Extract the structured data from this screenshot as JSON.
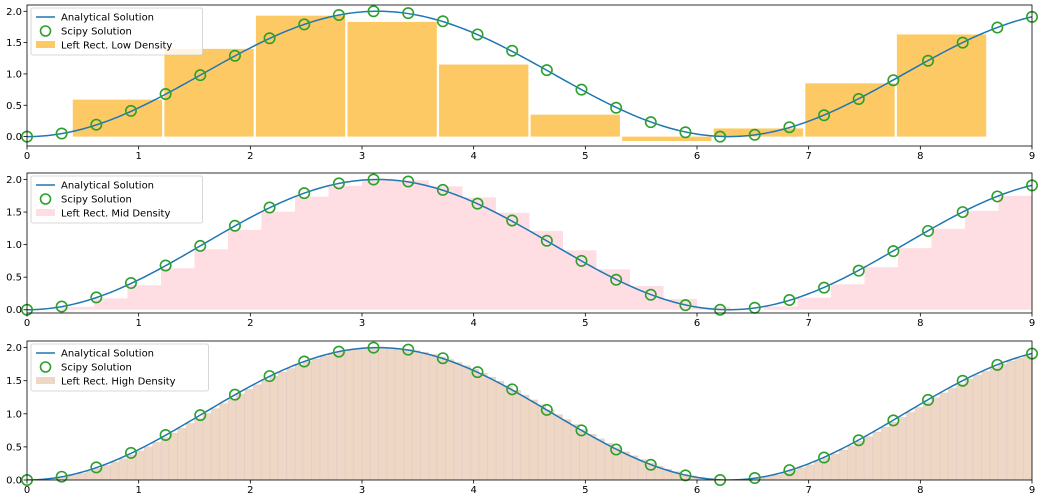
{
  "chart_data": [
    {
      "type": "line",
      "x_range": [
        0,
        9
      ],
      "y_range": [
        -0.15,
        2.1
      ],
      "x_ticks": [
        "0",
        "1",
        "2",
        "3",
        "4",
        "5",
        "6",
        "7",
        "8",
        "9"
      ],
      "y_ticks": [
        "0.0",
        "0.5",
        "1.0",
        "1.5",
        "2.0"
      ],
      "grid": false,
      "legend_position": "upper-left",
      "series": [
        {
          "name": "Analytical Solution",
          "kind": "line",
          "color": "#1f77b4",
          "function": "1 - cos(x)"
        },
        {
          "name": "Scipy Solution",
          "kind": "markers",
          "color": "#2ca02c",
          "x": [
            0,
            0.3103,
            0.6207,
            0.931,
            1.2414,
            1.5517,
            1.8621,
            2.1724,
            2.4828,
            2.7931,
            3.1034,
            3.4138,
            3.7241,
            4.0345,
            4.3448,
            4.6552,
            4.9655,
            5.2759,
            5.5862,
            5.8966,
            6.2069,
            6.5172,
            6.8276,
            7.1379,
            7.4483,
            7.7586,
            8.069,
            8.3793,
            8.6897,
            9.0
          ],
          "y": [
            0.0,
            0.05,
            0.19,
            0.41,
            0.68,
            0.98,
            1.29,
            1.57,
            1.79,
            1.94,
            2.0,
            1.97,
            1.84,
            1.63,
            1.37,
            1.06,
            0.75,
            0.46,
            0.23,
            0.07,
            0.0,
            0.03,
            0.15,
            0.34,
            0.6,
            0.9,
            1.21,
            1.5,
            1.74,
            1.91
          ]
        },
        {
          "name": "Left Rect. Low Density",
          "kind": "rectangles",
          "color": "#fdc964",
          "x_left": [
            0.41,
            1.23,
            2.05,
            2.87,
            3.69,
            4.51,
            5.33,
            6.15,
            6.97,
            7.79
          ],
          "width": 0.8,
          "heights": [
            0.59,
            1.4,
            1.93,
            1.83,
            1.15,
            0.35,
            -0.07,
            0.13,
            0.85,
            1.63
          ]
        }
      ]
    },
    {
      "type": "line",
      "x_range": [
        0,
        9
      ],
      "y_range": [
        -0.05,
        2.1
      ],
      "x_ticks": [
        "0",
        "1",
        "2",
        "3",
        "4",
        "5",
        "6",
        "7",
        "8",
        "9"
      ],
      "y_ticks": [
        "0.0",
        "0.5",
        "1.0",
        "1.5",
        "2.0"
      ],
      "grid": false,
      "legend_position": "upper-left",
      "series": [
        {
          "name": "Analytical Solution",
          "kind": "line",
          "color": "#1f77b4",
          "function": "1 - cos(x)"
        },
        {
          "name": "Scipy Solution",
          "kind": "markers",
          "color": "#2ca02c",
          "x": [
            0,
            0.3103,
            0.6207,
            0.931,
            1.2414,
            1.5517,
            1.8621,
            2.1724,
            2.4828,
            2.7931,
            3.1034,
            3.4138,
            3.7241,
            4.0345,
            4.3448,
            4.6552,
            4.9655,
            5.2759,
            5.5862,
            5.8966,
            6.2069,
            6.5172,
            6.8276,
            7.1379,
            7.4483,
            7.7586,
            8.069,
            8.3793,
            8.6897,
            9.0
          ],
          "y": [
            0.0,
            0.05,
            0.19,
            0.41,
            0.68,
            0.98,
            1.29,
            1.57,
            1.79,
            1.94,
            2.0,
            1.97,
            1.84,
            1.63,
            1.37,
            1.06,
            0.75,
            0.46,
            0.23,
            0.07,
            0.0,
            0.03,
            0.15,
            0.34,
            0.6,
            0.9,
            1.21,
            1.5,
            1.74,
            1.91
          ]
        },
        {
          "name": "Left Rect. Mid Density",
          "kind": "rectangles",
          "color": "#ffb6c1",
          "opacity": 0.45,
          "step": 0.3,
          "count": 30,
          "function": "1 - cos(x)"
        }
      ]
    },
    {
      "type": "line",
      "x_range": [
        0,
        9
      ],
      "y_range": [
        0.0,
        2.1
      ],
      "x_ticks": [
        "0",
        "1",
        "2",
        "3",
        "4",
        "5",
        "6",
        "7",
        "8",
        "9"
      ],
      "y_ticks": [
        "0.0",
        "0.5",
        "1.0",
        "1.5",
        "2.0"
      ],
      "grid": false,
      "legend_position": "upper-left",
      "series": [
        {
          "name": "Analytical Solution",
          "kind": "line",
          "color": "#1f77b4",
          "function": "1 - cos(x)"
        },
        {
          "name": "Scipy Solution",
          "kind": "markers",
          "color": "#2ca02c",
          "x": [
            0,
            0.3103,
            0.6207,
            0.931,
            1.2414,
            1.5517,
            1.8621,
            2.1724,
            2.4828,
            2.7931,
            3.1034,
            3.4138,
            3.7241,
            4.0345,
            4.3448,
            4.6552,
            4.9655,
            5.2759,
            5.5862,
            5.8966,
            6.2069,
            6.5172,
            6.8276,
            7.1379,
            7.4483,
            7.7586,
            8.069,
            8.3793,
            8.6897,
            9.0
          ],
          "y": [
            0.0,
            0.05,
            0.19,
            0.41,
            0.68,
            0.98,
            1.29,
            1.57,
            1.79,
            1.94,
            2.0,
            1.97,
            1.84,
            1.63,
            1.37,
            1.06,
            0.75,
            0.46,
            0.23,
            0.07,
            0.0,
            0.03,
            0.15,
            0.34,
            0.6,
            0.9,
            1.21,
            1.5,
            1.74,
            1.91
          ]
        },
        {
          "name": "Left Rect. High Density",
          "kind": "rectangles",
          "color": "#ddb08c",
          "opacity": 0.5,
          "step": 0.075,
          "count": 120,
          "function": "1 - cos(x)"
        }
      ]
    }
  ]
}
